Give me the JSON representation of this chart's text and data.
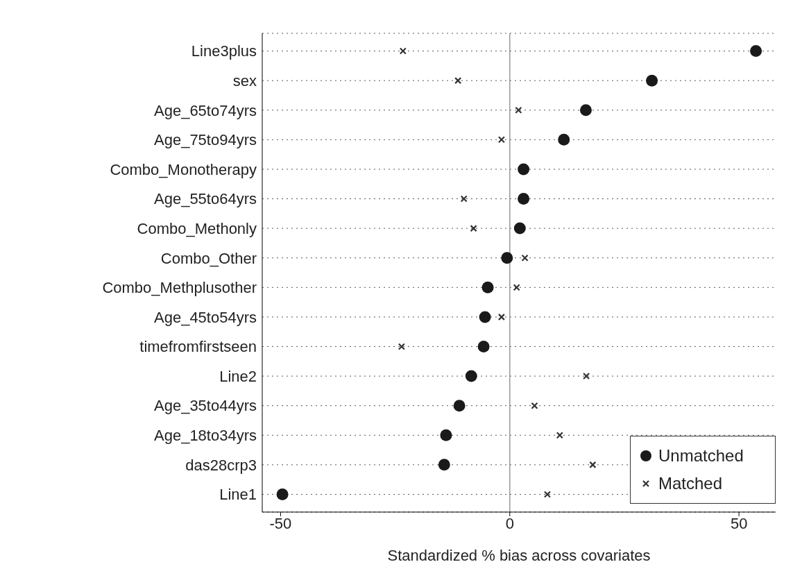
{
  "chart_data": {
    "type": "scatter",
    "xlabel": "Standardized % bias across covariates",
    "categories": [
      "Line3plus",
      "sex",
      "Age_65to74yrs",
      "Age_75to94yrs",
      "Combo_Monotherapy",
      "Age_55to64yrs",
      "Combo_Methonly",
      "Combo_Other",
      "Combo_Methplusother",
      "Age_45to54yrs",
      "timefromfirstseen",
      "Line2",
      "Age_35to44yrs",
      "Age_18to34yrs",
      "das28crp3",
      "Line1"
    ],
    "series": [
      {
        "name": "Unmatched",
        "color": "#1a1a1a",
        "marker": "circle",
        "values": [
          53.7,
          31.0,
          16.6,
          11.8,
          3.0,
          3.0,
          2.2,
          -0.6,
          -4.8,
          -5.4,
          -5.7,
          -8.4,
          -11.0,
          -13.9,
          -14.3,
          -49.6
        ]
      },
      {
        "name": "Matched",
        "color": "#333333",
        "marker": "cross",
        "values": [
          -23.3,
          -11.3,
          1.9,
          -1.8,
          null,
          -10.0,
          -7.9,
          3.3,
          1.5,
          -1.8,
          -23.6,
          16.7,
          5.4,
          10.9,
          18.1,
          8.2
        ]
      }
    ],
    "orientation": "horizontal",
    "xlim": [
      -54,
      58
    ],
    "xticks": [
      -50,
      0,
      50
    ],
    "grid": "y",
    "legend": "bottom right",
    "ref_lines": [
      {
        "axis": "x",
        "value": 0,
        "color": "#999999"
      }
    ]
  }
}
